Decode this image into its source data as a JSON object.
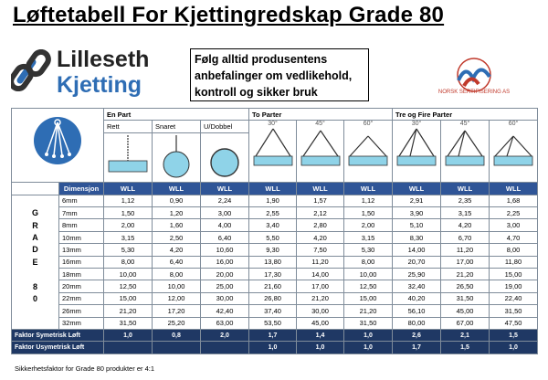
{
  "title": "Løftetabell For Kjettingredskap Grade 80",
  "brand": {
    "line1": "Lilleseth",
    "line2": "Kjetting"
  },
  "notice": {
    "line1": "Følg alltid produsentens",
    "line2": "anbefalinger om vedlikehold,",
    "line3": "kontroll og sikker bruk"
  },
  "cert": {
    "text": "NORSK SERTIFISERING AS"
  },
  "groups": {
    "en_part": "En Part",
    "to_parter": "To Parter",
    "tre_fire": "Tre og Fire Parter"
  },
  "subheaders": {
    "rett": "Rett",
    "snaret": "Snaret",
    "udobbel": "U/Dobbel"
  },
  "angles": [
    "30°",
    "45°",
    "60°",
    "30°",
    "45°",
    "60°"
  ],
  "wll_label": "WLL",
  "dim_label": "Dimensjon",
  "grade_letters": [
    "G",
    "R",
    "A",
    "D",
    "E",
    "",
    "8",
    "0"
  ],
  "rows": [
    {
      "dim": "6mm",
      "v": [
        "1,12",
        "0,90",
        "2,24",
        "1,90",
        "1,57",
        "1,12",
        "2,91",
        "2,35",
        "1,68"
      ]
    },
    {
      "dim": "7mm",
      "v": [
        "1,50",
        "1,20",
        "3,00",
        "2,55",
        "2,12",
        "1,50",
        "3,90",
        "3,15",
        "2,25"
      ]
    },
    {
      "dim": "8mm",
      "v": [
        "2,00",
        "1,60",
        "4,00",
        "3,40",
        "2,80",
        "2,00",
        "5,10",
        "4,20",
        "3,00"
      ]
    },
    {
      "dim": "10mm",
      "v": [
        "3,15",
        "2,50",
        "6,40",
        "5,50",
        "4,20",
        "3,15",
        "8,30",
        "6,70",
        "4,70"
      ]
    },
    {
      "dim": "13mm",
      "v": [
        "5,30",
        "4,20",
        "10,60",
        "9,30",
        "7,50",
        "5,30",
        "14,00",
        "11,20",
        "8,00"
      ]
    },
    {
      "dim": "16mm",
      "v": [
        "8,00",
        "6,40",
        "16,00",
        "13,80",
        "11,20",
        "8,00",
        "20,70",
        "17,00",
        "11,80"
      ]
    },
    {
      "dim": "18mm",
      "v": [
        "10,00",
        "8,00",
        "20,00",
        "17,30",
        "14,00",
        "10,00",
        "25,90",
        "21,20",
        "15,00"
      ]
    },
    {
      "dim": "20mm",
      "v": [
        "12,50",
        "10,00",
        "25,00",
        "21,60",
        "17,00",
        "12,50",
        "32,40",
        "26,50",
        "19,00"
      ]
    },
    {
      "dim": "22mm",
      "v": [
        "15,00",
        "12,00",
        "30,00",
        "26,80",
        "21,20",
        "15,00",
        "40,20",
        "31,50",
        "22,40"
      ]
    },
    {
      "dim": "26mm",
      "v": [
        "21,20",
        "17,20",
        "42,40",
        "37,40",
        "30,00",
        "21,20",
        "56,10",
        "45,00",
        "31,50"
      ]
    },
    {
      "dim": "32mm",
      "v": [
        "31,50",
        "25,20",
        "63,00",
        "53,50",
        "45,00",
        "31,50",
        "80,00",
        "67,00",
        "47,50"
      ]
    }
  ],
  "factors": [
    {
      "label": "Faktor Symetrisk Løft",
      "v": [
        "1,0",
        "0,8",
        "2,0",
        "1,7",
        "1,4",
        "1,0",
        "2,6",
        "2,1",
        "1,5"
      ]
    },
    {
      "label": "Faktor Usymetrisk Løft",
      "v": [
        "",
        "",
        "",
        "1,0",
        "1,0",
        "1,0",
        "1,7",
        "1,5",
        "1,0"
      ]
    }
  ],
  "footnote": "Sikkerhetsfaktor for Grade 80 produkter er 4:1",
  "colors": {
    "header_blue": "#2f5597",
    "factor_dark": "#1f3864",
    "load_block": "#8fd3e8",
    "brand_blue": "#2e6db4"
  }
}
